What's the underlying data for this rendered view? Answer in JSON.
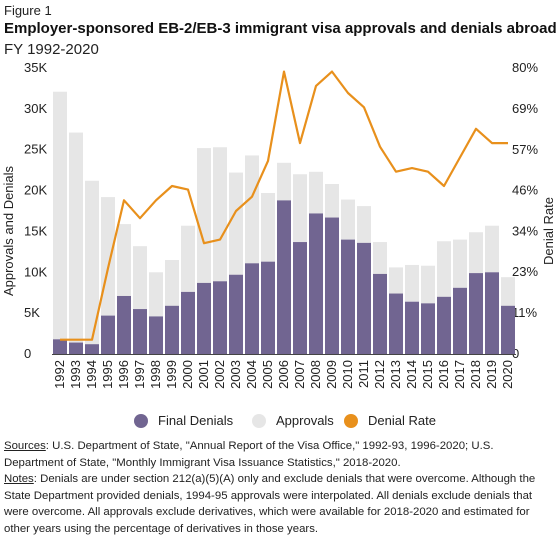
{
  "figure_label": "Figure 1",
  "title": "Employer-sponsored EB-2/EB-3 immigrant visa approvals and denials abroad",
  "subtitle": "FY 1992-2020",
  "colors": {
    "final_denials": "#716591",
    "approvals": "#e6e6e6",
    "denial_rate": "#e8901c"
  },
  "chart_data": {
    "type": "bar",
    "stacked": true,
    "categories": [
      "1992",
      "1993",
      "1994",
      "1995",
      "1996",
      "1997",
      "1998",
      "1999",
      "2000",
      "2001",
      "2002",
      "2003",
      "2004",
      "2005",
      "2006",
      "2007",
      "2008",
      "2009",
      "2010",
      "2011",
      "2012",
      "2013",
      "2014",
      "2015",
      "2016",
      "2017",
      "2018",
      "2019",
      "2020"
    ],
    "ylabel": "Approvals and Denials",
    "y2label": "Denial Rate",
    "ylim": [
      0,
      35000
    ],
    "y2lim": [
      0,
      80
    ],
    "yticks": [
      0,
      5000,
      10000,
      15000,
      20000,
      25000,
      30000,
      35000
    ],
    "ytick_labels": [
      "0",
      "5K",
      "10K",
      "15K",
      "20K",
      "25K",
      "30K",
      "35K"
    ],
    "y2ticks": [
      0,
      11.4,
      22.9,
      34.3,
      45.7,
      57.1,
      68.6,
      80
    ],
    "y2tick_labels": [
      "0",
      "11%",
      "23%",
      "34%",
      "46%",
      "57%",
      "69%",
      "80%"
    ],
    "series": [
      {
        "name": "Final Denials",
        "kind": "bar",
        "axis": "left",
        "values": [
          1800,
          1400,
          1200,
          4700,
          7100,
          5500,
          4600,
          5900,
          7600,
          8700,
          8900,
          9700,
          11100,
          11300,
          18800,
          13700,
          17200,
          16700,
          14000,
          13600,
          9800,
          7400,
          6400,
          6200,
          7000,
          8100,
          9900,
          10000,
          5900
        ]
      },
      {
        "name": "Approvals",
        "kind": "bar",
        "axis": "left",
        "values": [
          30300,
          25700,
          20000,
          14500,
          8800,
          7700,
          5400,
          5600,
          8100,
          16500,
          16400,
          12500,
          13200,
          8400,
          4600,
          8300,
          5100,
          4100,
          4900,
          4500,
          3900,
          3200,
          4500,
          4600,
          6800,
          5900,
          5000,
          5700,
          3500
        ]
      },
      {
        "name": "Denial Rate",
        "kind": "line",
        "axis": "right",
        "values": [
          4,
          4,
          4,
          24,
          43,
          38,
          43,
          47,
          46,
          31,
          32,
          40,
          44,
          54,
          79,
          59,
          75,
          79,
          73,
          69,
          58,
          51,
          52,
          51,
          47,
          55,
          63,
          59,
          59
        ]
      }
    ],
    "legend": "bottom"
  },
  "legend_items": [
    {
      "label": "Final Denials",
      "color": "#716591"
    },
    {
      "label": "Approvals",
      "color": "#e6e6e6"
    },
    {
      "label": "Denial Rate",
      "color": "#e8901c"
    }
  ],
  "notes": {
    "sources_label": "Sources",
    "sources_text": ": U.S. Department of State, \"Annual Report of the Visa Office,\" 1992-93, 1996-2020; U.S. Department of State, \"Monthly Immigrant Visa Issuance Statistics,\" 2018-2020.",
    "notes_label": "Notes",
    "notes_text": ": Denials are under section 212(a)(5)(A) only and exclude denials that were overcome. Although the State Department provided denials, 1994-95 approvals were interpolated. All denials exclude denials that were overcome. All approvals exclude derivatives, which were available  for 2018-2020 and estimated for other years using the percentage of derivatives in those years."
  }
}
